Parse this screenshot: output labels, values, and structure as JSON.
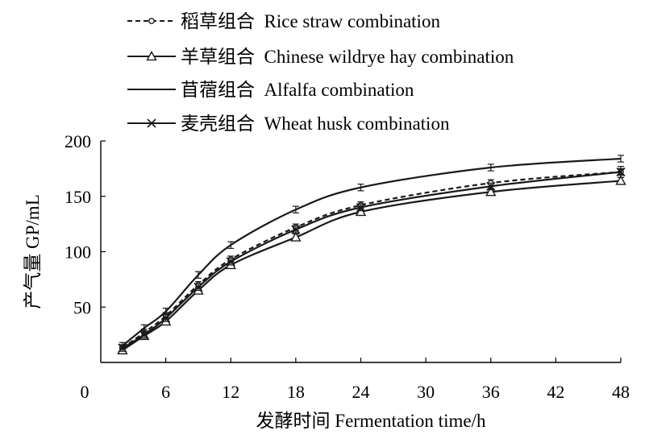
{
  "chart_data": {
    "type": "line",
    "xlabel": "发酵时间  Fermentation time/h",
    "ylabel": "产气量 GP/mL",
    "xlim": [
      0,
      48
    ],
    "ylim": [
      0,
      200
    ],
    "x_ticks": [
      0,
      6,
      12,
      18,
      24,
      30,
      36,
      42,
      48
    ],
    "y_ticks": [
      50,
      100,
      150,
      200
    ],
    "grid": false,
    "legend_position": "top-left, above plot",
    "x": [
      2,
      4,
      6,
      9,
      12,
      18,
      24,
      36,
      48
    ],
    "series": [
      {
        "name": "稻草组合  Rice straw combination",
        "marker": "circle",
        "dash": "dashed",
        "values": [
          13,
          27,
          42,
          70,
          93,
          122,
          142,
          162,
          172
        ],
        "error": [
          3,
          3,
          3,
          3,
          3,
          3,
          3,
          3,
          3
        ]
      },
      {
        "name": "羊草组合  Chinese wildrye hay combination",
        "marker": "triangle",
        "dash": "solid",
        "values": [
          11,
          24,
          37,
          65,
          88,
          113,
          136,
          154,
          164
        ],
        "error": [
          3,
          3,
          3,
          3,
          3,
          3,
          3,
          3,
          3
        ]
      },
      {
        "name": "苜蓿组合  Alfalfa combination",
        "marker": "none",
        "dash": "solid",
        "values": [
          15,
          31,
          46,
          79,
          106,
          138,
          158,
          176,
          184
        ],
        "error": [
          3,
          3,
          3,
          3,
          3,
          3,
          3,
          3,
          3
        ]
      },
      {
        "name": "麦壳组合  Wheat husk combination",
        "marker": "x",
        "dash": "solid",
        "values": [
          13,
          25,
          40,
          68,
          91,
          120,
          140,
          159,
          172
        ],
        "error": [
          3,
          3,
          3,
          3,
          3,
          3,
          3,
          3,
          5
        ]
      }
    ]
  }
}
